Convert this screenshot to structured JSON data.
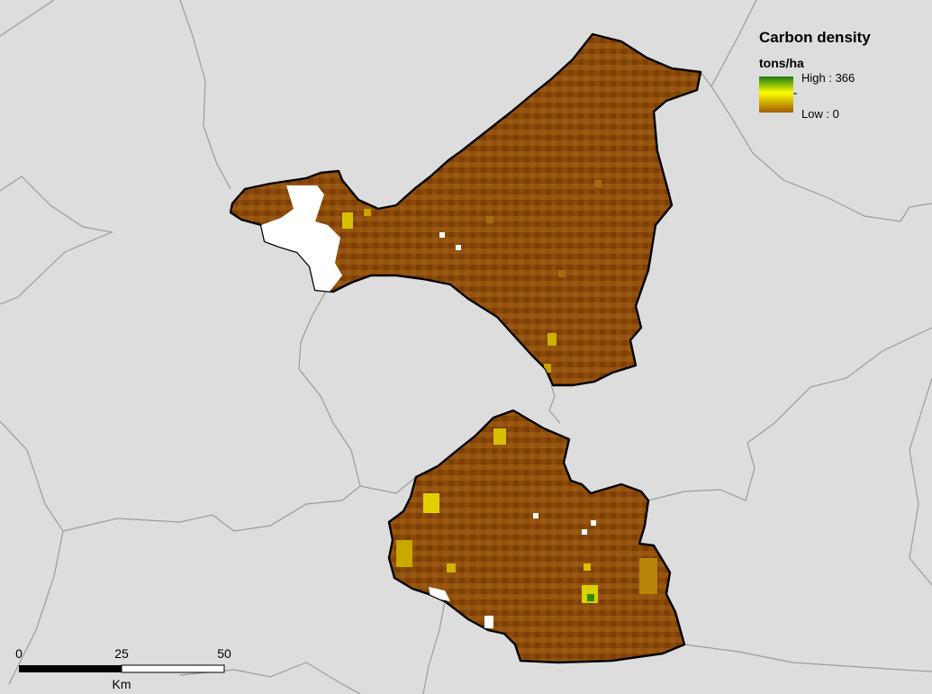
{
  "legend": {
    "title": "Carbon density",
    "units": "tons/ha",
    "high_label": "High : 366",
    "low_label": "Low : 0",
    "ramp_colors": [
      "#1a7a14",
      "#ffff00",
      "#a05a00"
    ]
  },
  "scale_bar": {
    "tick_labels": [
      "0",
      "25",
      "50"
    ],
    "unit": "Km"
  },
  "colors": {
    "background": "#dddddd",
    "admin_lines": "#9b9b9b",
    "region_fill": "#8b4a08",
    "no_data": "#ffffff"
  }
}
